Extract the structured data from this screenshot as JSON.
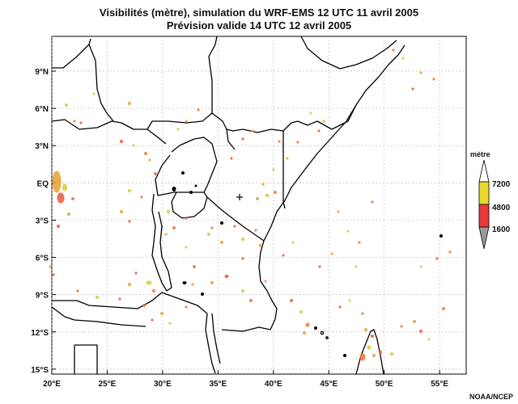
{
  "title_line1": "Visibilités (mètre), simulation du WRF-EMS 12 UTC 11 avril 2005",
  "title_line2": "Prévision valide 14 UTC 12 avril 2005",
  "map": {
    "lon_ticks": [
      {
        "value": 20,
        "label": "20°E"
      },
      {
        "value": 25,
        "label": "25°E"
      },
      {
        "value": 30,
        "label": "30°E"
      },
      {
        "value": 35,
        "label": "35°E"
      },
      {
        "value": 40,
        "label": "40°E"
      },
      {
        "value": 45,
        "label": "45°E"
      },
      {
        "value": 50,
        "label": "50°E"
      },
      {
        "value": 55,
        "label": "55°E"
      }
    ],
    "lat_ticks": [
      {
        "value": 9,
        "label": "9°N"
      },
      {
        "value": 6,
        "label": "6°N"
      },
      {
        "value": 3,
        "label": "3°N"
      },
      {
        "value": 0,
        "label": "EQ"
      },
      {
        "value": -3,
        "label": "3°S"
      },
      {
        "value": -6,
        "label": "6°S"
      },
      {
        "value": -9,
        "label": "9°S"
      },
      {
        "value": -12,
        "label": "12°S"
      },
      {
        "value": -15,
        "label": "15°S"
      }
    ],
    "lon_range": [
      20,
      57.4
    ],
    "lat_range": [
      -15.4,
      11.8
    ]
  },
  "legend": {
    "title": "mètre",
    "levels": [
      {
        "label": "7200",
        "color": "#ffffff"
      },
      {
        "label": "4800",
        "color": "#e8d830"
      },
      {
        "label": "1600",
        "color": "#e83a3a"
      }
    ],
    "low_color": "#9a9a9a"
  },
  "credit": "NOAA/NCEP"
}
